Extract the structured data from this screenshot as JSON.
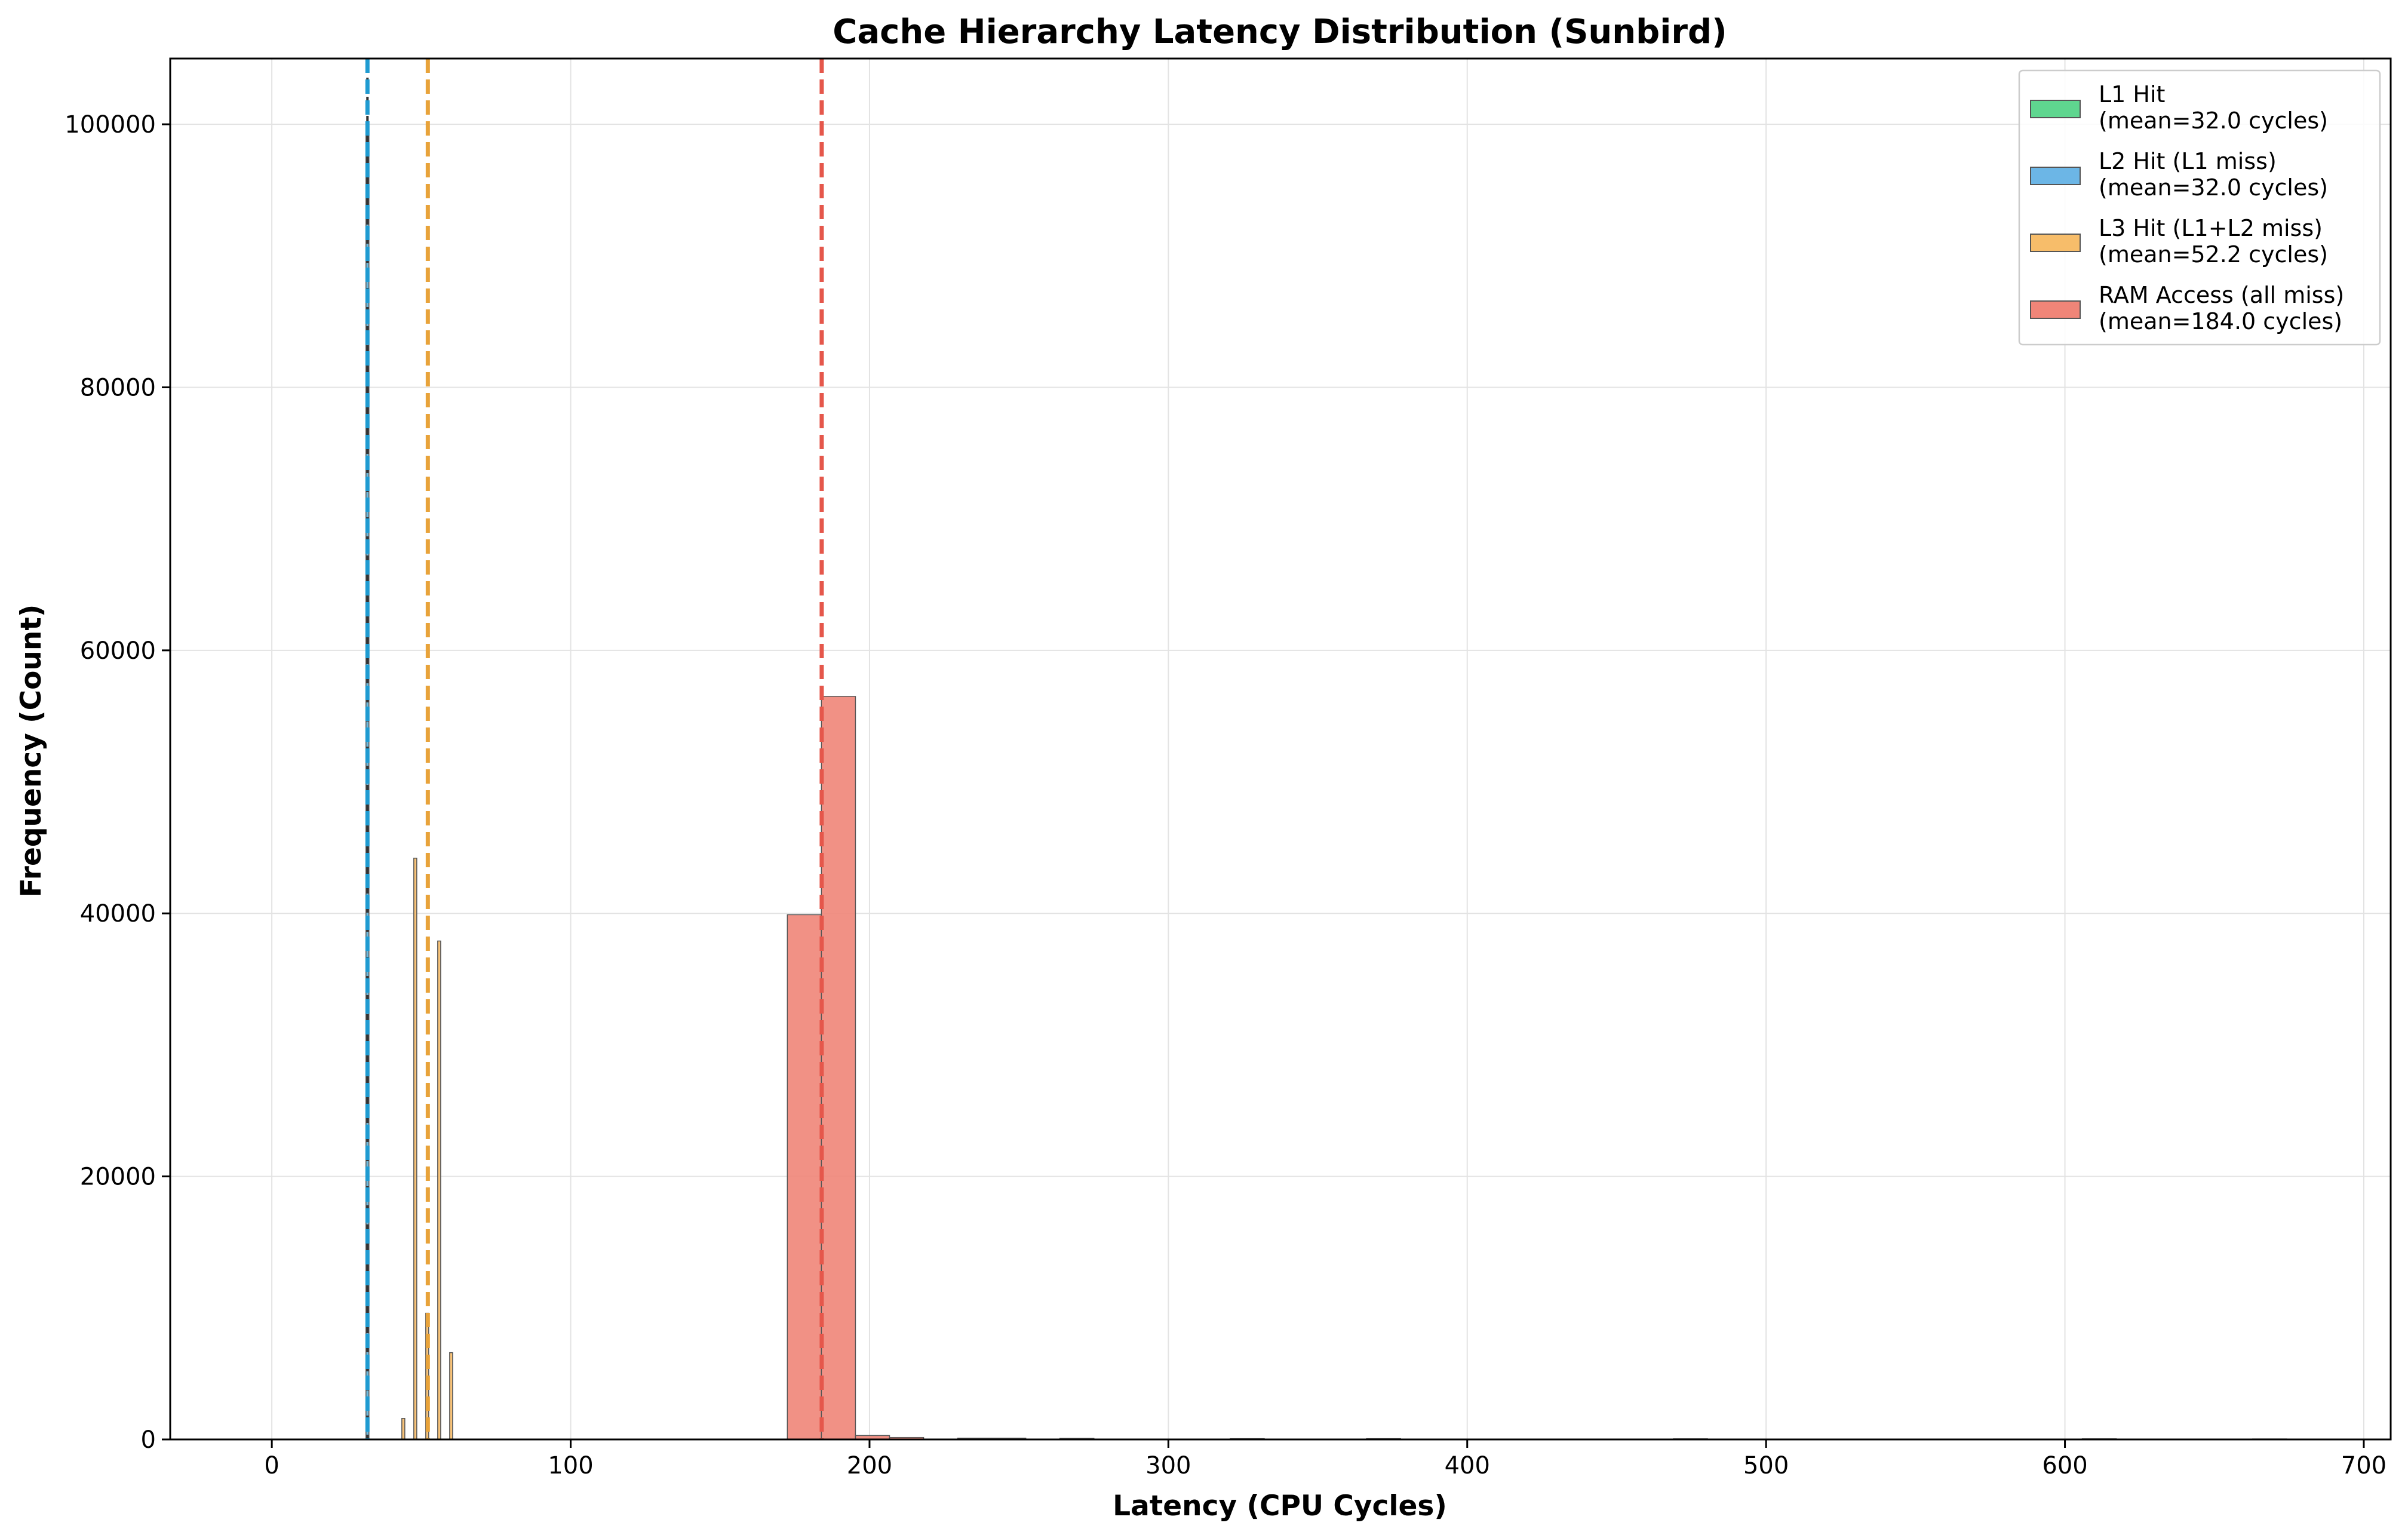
{
  "chart_data": {
    "type": "bar",
    "title": "Cache Hierarchy Latency Distribution (Sunbird)",
    "xlabel": "Latency (CPU Cycles)",
    "ylabel": "Frequency (Count)",
    "xlim": [
      -34,
      709
    ],
    "ylim": [
      0,
      105000
    ],
    "xticks": [
      0,
      100,
      200,
      300,
      400,
      500,
      600,
      700
    ],
    "yticks": [
      0,
      20000,
      40000,
      60000,
      80000,
      100000
    ],
    "grid": true,
    "legend_position": "top-right",
    "series": [
      {
        "name": "L1 Hit",
        "mean_label": "(mean=32.0 cycles)",
        "mean": 32.0,
        "color": "#5fd68f",
        "bins": [
          {
            "x0": 31.5,
            "x1": 32.5,
            "count": 100000
          }
        ]
      },
      {
        "name": "L2 Hit (L1 miss)",
        "mean_label": "(mean=32.0 cycles)",
        "mean": 32.0,
        "color": "#6cb6e6",
        "line_color": "#1f9bd1",
        "bins": [
          {
            "x0": 31.5,
            "x1": 32.5,
            "count": 100000
          }
        ]
      },
      {
        "name": "L3 Hit (L1+L2 miss)",
        "mean_label": "(mean=52.2 cycles)",
        "mean": 52.2,
        "color": "#f7bd6a",
        "line_color": "#e8a33a",
        "bins": [
          {
            "x0": 43.5,
            "x1": 44.5,
            "count": 1600
          },
          {
            "x0": 47.5,
            "x1": 48.5,
            "count": 44200
          },
          {
            "x0": 51.5,
            "x1": 52.5,
            "count": 9600
          },
          {
            "x0": 55.5,
            "x1": 56.5,
            "count": 37900
          },
          {
            "x0": 59.5,
            "x1": 60.5,
            "count": 6600
          }
        ]
      },
      {
        "name": "RAM Access (all miss)",
        "mean_label": "(mean=184.0 cycles)",
        "mean": 184.0,
        "color": "#f08578",
        "line_color": "#e5574b",
        "bins": [
          {
            "x0": 172.5,
            "x1": 183.9,
            "count": 39900
          },
          {
            "x0": 183.9,
            "x1": 195.3,
            "count": 56500
          },
          {
            "x0": 195.3,
            "x1": 206.7,
            "count": 300
          },
          {
            "x0": 206.7,
            "x1": 218.1,
            "count": 150
          },
          {
            "x0": 229.5,
            "x1": 240.9,
            "count": 100
          },
          {
            "x0": 240.9,
            "x1": 252.3,
            "count": 100
          },
          {
            "x0": 263.7,
            "x1": 275.1,
            "count": 80
          },
          {
            "x0": 320.7,
            "x1": 332.1,
            "count": 60
          },
          {
            "x0": 366.3,
            "x1": 377.7,
            "count": 60
          },
          {
            "x0": 469.0,
            "x1": 480.4,
            "count": 50
          },
          {
            "x0": 605.8,
            "x1": 617.2,
            "count": 50
          },
          {
            "x0": 662.8,
            "x1": 674.2,
            "count": 40
          }
        ]
      }
    ]
  }
}
